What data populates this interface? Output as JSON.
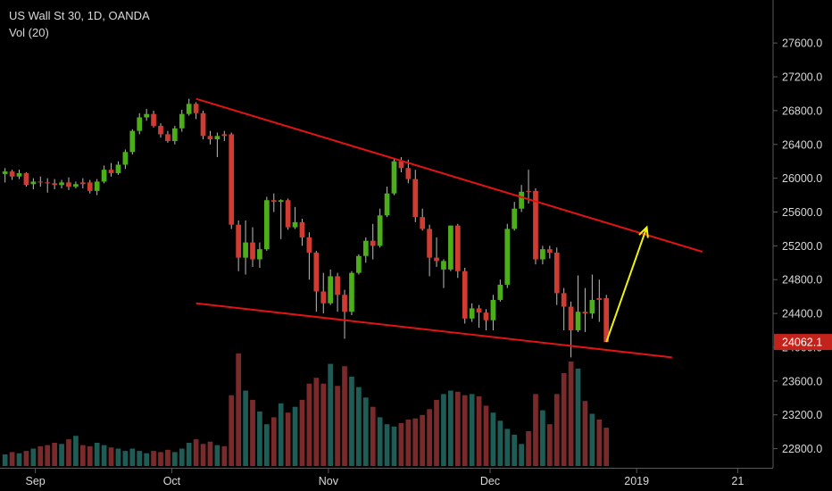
{
  "legend": {
    "symbol_line": "US Wall St 30, 1D, OANDA",
    "volume_line": "Vol (20)"
  },
  "colors": {
    "background": "#000000",
    "up_candle": "#4caf1a",
    "down_candle": "#d13c32",
    "wick": "#bdbdbd",
    "up_volume": "#1e5c55",
    "down_volume": "#7a2a2a",
    "trend_lines": "#e01414",
    "arrow": "#f2f20a",
    "axis_text": "#d8d8d8",
    "price_label_bg": "#c4231c"
  },
  "chart_data": {
    "type": "candlestick",
    "title": "US Wall St 30, 1D, OANDA",
    "indicator": "Vol (20)",
    "y_axis": {
      "ticks": [
        "22800.0",
        "23200.0",
        "23600.0",
        "24000.0",
        "24400.0",
        "24800.0",
        "25200.0",
        "25600.0",
        "26000.0",
        "26400.0",
        "26800.0",
        "27200.0",
        "27600.0"
      ],
      "range": [
        22600,
        27850
      ],
      "current_price_label": "24062.1",
      "current_price": 24062.1
    },
    "x_axis": {
      "ticks": [
        {
          "label": "Sep",
          "date": "2018-09-04"
        },
        {
          "label": "Oct",
          "date": "2018-10-01"
        },
        {
          "label": "Nov",
          "date": "2018-11-01"
        },
        {
          "label": "Dec",
          "date": "2018-12-03"
        },
        {
          "label": "2019",
          "date": "2019-01-01"
        },
        {
          "label": "21",
          "date": "2019-01-21"
        }
      ],
      "range": [
        "2018-08-28",
        "2019-01-28"
      ]
    },
    "candles": [
      {
        "date": "2018-08-29",
        "open": 26050,
        "high": 26120,
        "low": 25950,
        "close": 26080,
        "up": true,
        "volume": 0.1
      },
      {
        "date": "2018-08-30",
        "open": 26080,
        "high": 26100,
        "low": 25980,
        "close": 26020,
        "up": false,
        "volume": 0.12
      },
      {
        "date": "2018-08-31",
        "open": 26020,
        "high": 26100,
        "low": 25990,
        "close": 26060,
        "up": true,
        "volume": 0.11
      },
      {
        "date": "2018-09-03",
        "open": 26060,
        "high": 26070,
        "low": 25900,
        "close": 25920,
        "up": false,
        "volume": 0.13
      },
      {
        "date": "2018-09-04",
        "open": 25930,
        "high": 26000,
        "low": 25870,
        "close": 25960,
        "up": true,
        "volume": 0.15
      },
      {
        "date": "2018-09-05",
        "open": 25960,
        "high": 26020,
        "low": 25900,
        "close": 25950,
        "up": false,
        "volume": 0.17
      },
      {
        "date": "2018-09-06",
        "open": 25950,
        "high": 26000,
        "low": 25830,
        "close": 25940,
        "up": false,
        "volume": 0.18
      },
      {
        "date": "2018-09-07",
        "open": 25940,
        "high": 25990,
        "low": 25870,
        "close": 25920,
        "up": false,
        "volume": 0.2
      },
      {
        "date": "2018-09-10",
        "open": 25920,
        "high": 25980,
        "low": 25880,
        "close": 25950,
        "up": true,
        "volume": 0.19
      },
      {
        "date": "2018-09-11",
        "open": 25950,
        "high": 26010,
        "low": 25860,
        "close": 25900,
        "up": false,
        "volume": 0.23
      },
      {
        "date": "2018-09-12",
        "open": 25900,
        "high": 25960,
        "low": 25880,
        "close": 25930,
        "up": true,
        "volume": 0.26
      },
      {
        "date": "2018-09-13",
        "open": 25930,
        "high": 26000,
        "low": 25880,
        "close": 25950,
        "up": false,
        "volume": 0.18
      },
      {
        "date": "2018-09-14",
        "open": 25950,
        "high": 25980,
        "low": 25820,
        "close": 25850,
        "up": false,
        "volume": 0.17
      },
      {
        "date": "2018-09-17",
        "open": 25850,
        "high": 25990,
        "low": 25800,
        "close": 25960,
        "up": true,
        "volume": 0.2
      },
      {
        "date": "2018-09-18",
        "open": 25960,
        "high": 26150,
        "low": 25940,
        "close": 26100,
        "up": true,
        "volume": 0.18
      },
      {
        "date": "2018-09-19",
        "open": 26100,
        "high": 26180,
        "low": 26020,
        "close": 26060,
        "up": false,
        "volume": 0.16
      },
      {
        "date": "2018-09-20",
        "open": 26060,
        "high": 26200,
        "low": 26040,
        "close": 26160,
        "up": true,
        "volume": 0.15
      },
      {
        "date": "2018-09-21",
        "open": 26160,
        "high": 26340,
        "low": 26110,
        "close": 26310,
        "up": true,
        "volume": 0.13
      },
      {
        "date": "2018-09-24",
        "open": 26310,
        "high": 26580,
        "low": 26280,
        "close": 26560,
        "up": true,
        "volume": 0.15
      },
      {
        "date": "2018-09-25",
        "open": 26560,
        "high": 26770,
        "low": 26520,
        "close": 26720,
        "up": true,
        "volume": 0.13
      },
      {
        "date": "2018-09-26",
        "open": 26720,
        "high": 26820,
        "low": 26680,
        "close": 26760,
        "up": true,
        "volume": 0.11
      },
      {
        "date": "2018-09-27",
        "open": 26760,
        "high": 26800,
        "low": 26600,
        "close": 26620,
        "up": false,
        "volume": 0.13
      },
      {
        "date": "2018-09-28",
        "open": 26620,
        "high": 26650,
        "low": 26480,
        "close": 26520,
        "up": false,
        "volume": 0.12
      },
      {
        "date": "2018-10-01",
        "open": 26520,
        "high": 26560,
        "low": 26420,
        "close": 26440,
        "up": false,
        "volume": 0.14
      },
      {
        "date": "2018-10-02",
        "open": 26440,
        "high": 26620,
        "low": 26400,
        "close": 26590,
        "up": true,
        "volume": 0.12
      },
      {
        "date": "2018-10-03",
        "open": 26590,
        "high": 26810,
        "low": 26550,
        "close": 26760,
        "up": true,
        "volume": 0.15
      },
      {
        "date": "2018-10-04",
        "open": 26760,
        "high": 26940,
        "low": 26740,
        "close": 26880,
        "up": true,
        "volume": 0.2
      },
      {
        "date": "2018-10-05",
        "open": 26880,
        "high": 26900,
        "low": 26700,
        "close": 26770,
        "up": false,
        "volume": 0.23
      },
      {
        "date": "2018-10-08",
        "open": 26770,
        "high": 26800,
        "low": 26460,
        "close": 26500,
        "up": false,
        "volume": 0.19
      },
      {
        "date": "2018-10-09",
        "open": 26500,
        "high": 26560,
        "low": 26400,
        "close": 26460,
        "up": false,
        "volume": 0.21
      },
      {
        "date": "2018-10-10",
        "open": 26460,
        "high": 26540,
        "low": 26250,
        "close": 26500,
        "up": true,
        "volume": 0.18
      },
      {
        "date": "2018-10-11",
        "open": 26500,
        "high": 26560,
        "low": 26440,
        "close": 26520,
        "up": false,
        "volume": 0.17
      },
      {
        "date": "2018-10-12",
        "open": 26520,
        "high": 26540,
        "low": 25400,
        "close": 25450,
        "up": false,
        "volume": 0.61
      },
      {
        "date": "2018-10-15",
        "open": 25450,
        "high": 25500,
        "low": 24900,
        "close": 25060,
        "up": false,
        "volume": 0.97
      },
      {
        "date": "2018-10-16",
        "open": 25060,
        "high": 25500,
        "low": 24860,
        "close": 25240,
        "up": true,
        "volume": 0.65
      },
      {
        "date": "2018-10-17",
        "open": 25240,
        "high": 25420,
        "low": 24950,
        "close": 25040,
        "up": false,
        "volume": 0.57
      },
      {
        "date": "2018-10-18",
        "open": 25040,
        "high": 25240,
        "low": 24940,
        "close": 25160,
        "up": true,
        "volume": 0.47
      },
      {
        "date": "2018-10-19",
        "open": 25160,
        "high": 25780,
        "low": 25140,
        "close": 25740,
        "up": true,
        "volume": 0.36
      },
      {
        "date": "2018-10-22",
        "open": 25740,
        "high": 25820,
        "low": 25600,
        "close": 25720,
        "up": false,
        "volume": 0.42
      },
      {
        "date": "2018-10-23",
        "open": 25720,
        "high": 25750,
        "low": 25280,
        "close": 25740,
        "up": true,
        "volume": 0.54
      },
      {
        "date": "2018-10-24",
        "open": 25740,
        "high": 25760,
        "low": 25390,
        "close": 25420,
        "up": false,
        "volume": 0.46
      },
      {
        "date": "2018-10-25",
        "open": 25420,
        "high": 25660,
        "low": 25400,
        "close": 25480,
        "up": true,
        "volume": 0.51
      },
      {
        "date": "2018-10-26",
        "open": 25480,
        "high": 25520,
        "low": 25200,
        "close": 25300,
        "up": false,
        "volume": 0.57
      },
      {
        "date": "2018-10-29",
        "open": 25300,
        "high": 25360,
        "low": 24800,
        "close": 25120,
        "up": false,
        "volume": 0.71
      },
      {
        "date": "2018-10-30",
        "open": 25120,
        "high": 25140,
        "low": 24420,
        "close": 24660,
        "up": false,
        "volume": 0.76
      },
      {
        "date": "2018-10-31",
        "open": 24660,
        "high": 24880,
        "low": 24400,
        "close": 24520,
        "up": false,
        "volume": 0.71
      },
      {
        "date": "2018-11-01",
        "open": 24520,
        "high": 24920,
        "low": 24500,
        "close": 24840,
        "up": true,
        "volume": 0.88
      },
      {
        "date": "2018-11-02",
        "open": 24840,
        "high": 24880,
        "low": 24420,
        "close": 24620,
        "up": false,
        "volume": 0.69
      },
      {
        "date": "2018-11-05",
        "open": 24620,
        "high": 24680,
        "low": 24100,
        "close": 24420,
        "up": false,
        "volume": 0.86
      },
      {
        "date": "2018-11-06",
        "open": 24420,
        "high": 24900,
        "low": 24380,
        "close": 24880,
        "up": true,
        "volume": 0.77
      },
      {
        "date": "2018-11-07",
        "open": 24880,
        "high": 25100,
        "low": 24860,
        "close": 25080,
        "up": true,
        "volume": 0.68
      },
      {
        "date": "2018-11-08",
        "open": 25080,
        "high": 25300,
        "low": 25000,
        "close": 25260,
        "up": true,
        "volume": 0.59
      },
      {
        "date": "2018-11-09",
        "open": 25260,
        "high": 25460,
        "low": 25040,
        "close": 25200,
        "up": false,
        "volume": 0.51
      },
      {
        "date": "2018-11-12",
        "open": 25200,
        "high": 25640,
        "low": 25180,
        "close": 25560,
        "up": true,
        "volume": 0.42
      },
      {
        "date": "2018-11-13",
        "open": 25560,
        "high": 25900,
        "low": 25540,
        "close": 25820,
        "up": true,
        "volume": 0.36
      },
      {
        "date": "2018-11-14",
        "open": 25820,
        "high": 26240,
        "low": 25800,
        "close": 26200,
        "up": true,
        "volume": 0.34
      },
      {
        "date": "2018-11-15",
        "open": 26200,
        "high": 26250,
        "low": 26070,
        "close": 26120,
        "up": false,
        "volume": 0.37
      },
      {
        "date": "2018-11-16",
        "open": 26120,
        "high": 26220,
        "low": 25940,
        "close": 25990,
        "up": false,
        "volume": 0.4
      },
      {
        "date": "2018-11-19",
        "open": 25990,
        "high": 26100,
        "low": 25480,
        "close": 25540,
        "up": false,
        "volume": 0.41
      },
      {
        "date": "2018-11-20",
        "open": 25540,
        "high": 25640,
        "low": 25380,
        "close": 25400,
        "up": false,
        "volume": 0.44
      },
      {
        "date": "2018-11-21",
        "open": 25400,
        "high": 25450,
        "low": 24840,
        "close": 25060,
        "up": false,
        "volume": 0.49
      },
      {
        "date": "2018-11-22",
        "open": 25060,
        "high": 25300,
        "low": 24950,
        "close": 25020,
        "up": false,
        "volume": 0.57
      },
      {
        "date": "2018-11-23",
        "open": 25020,
        "high": 25040,
        "low": 24700,
        "close": 24920,
        "up": true,
        "volume": 0.62
      },
      {
        "date": "2018-11-26",
        "open": 24920,
        "high": 25440,
        "low": 24900,
        "close": 25440,
        "up": true,
        "volume": 0.65
      },
      {
        "date": "2018-11-27",
        "open": 25440,
        "high": 25460,
        "low": 24820,
        "close": 24900,
        "up": false,
        "volume": 0.64
      },
      {
        "date": "2018-11-28",
        "open": 24900,
        "high": 24940,
        "low": 24280,
        "close": 24340,
        "up": false,
        "volume": 0.61
      },
      {
        "date": "2018-11-29",
        "open": 24340,
        "high": 24520,
        "low": 24300,
        "close": 24460,
        "up": true,
        "volume": 0.62
      },
      {
        "date": "2018-11-30",
        "open": 24460,
        "high": 24500,
        "low": 24230,
        "close": 24410,
        "up": false,
        "volume": 0.6
      },
      {
        "date": "2018-12-03",
        "open": 24410,
        "high": 24450,
        "low": 24200,
        "close": 24320,
        "up": false,
        "volume": 0.52
      },
      {
        "date": "2018-12-04",
        "open": 24320,
        "high": 24620,
        "low": 24200,
        "close": 24560,
        "up": true,
        "volume": 0.46
      },
      {
        "date": "2018-12-05",
        "open": 24560,
        "high": 24800,
        "low": 24540,
        "close": 24740,
        "up": true,
        "volume": 0.39
      },
      {
        "date": "2018-12-06",
        "open": 24740,
        "high": 25460,
        "low": 24700,
        "close": 25400,
        "up": true,
        "volume": 0.32
      },
      {
        "date": "2018-12-07",
        "open": 25400,
        "high": 25720,
        "low": 25380,
        "close": 25640,
        "up": true,
        "volume": 0.27
      },
      {
        "date": "2018-12-10",
        "open": 25640,
        "high": 25920,
        "low": 25600,
        "close": 25840,
        "up": true,
        "volume": 0.19
      },
      {
        "date": "2018-12-11",
        "open": 25840,
        "high": 26100,
        "low": 25700,
        "close": 25850,
        "up": false,
        "volume": 0.3
      },
      {
        "date": "2018-12-12",
        "open": 25850,
        "high": 25880,
        "low": 24980,
        "close": 25040,
        "up": false,
        "volume": 0.62
      },
      {
        "date": "2018-12-13",
        "open": 25040,
        "high": 25200,
        "low": 24980,
        "close": 25160,
        "up": true,
        "volume": 0.48
      },
      {
        "date": "2018-12-14",
        "open": 25160,
        "high": 25200,
        "low": 25050,
        "close": 25120,
        "up": false,
        "volume": 0.36
      },
      {
        "date": "2018-12-17",
        "open": 25120,
        "high": 25180,
        "low": 24500,
        "close": 24640,
        "up": false,
        "volume": 0.62
      },
      {
        "date": "2018-12-18",
        "open": 24640,
        "high": 24700,
        "low": 24200,
        "close": 24480,
        "up": false,
        "volume": 0.8
      },
      {
        "date": "2018-12-19",
        "open": 24480,
        "high": 24540,
        "low": 23880,
        "close": 24200,
        "up": false,
        "volume": 0.9
      },
      {
        "date": "2018-12-20",
        "open": 24200,
        "high": 24850,
        "low": 24180,
        "close": 24420,
        "up": true,
        "volume": 0.84
      },
      {
        "date": "2018-12-21",
        "open": 24420,
        "high": 24700,
        "low": 24180,
        "close": 24400,
        "up": false,
        "volume": 0.56
      },
      {
        "date": "2018-12-24",
        "open": 24400,
        "high": 24860,
        "low": 24340,
        "close": 24560,
        "up": true,
        "volume": 0.45
      },
      {
        "date": "2018-12-25",
        "open": 24560,
        "high": 24800,
        "low": 24300,
        "close": 24580,
        "up": false,
        "volume": 0.4
      },
      {
        "date": "2018-12-26",
        "open": 24580,
        "high": 24620,
        "low": 24062.1,
        "close": 24062.1,
        "up": false,
        "volume": 0.33
      }
    ],
    "trend_lines": [
      {
        "name": "upper",
        "from": {
          "date": "2018-10-05",
          "price": 26940
        },
        "to": {
          "date": "2019-01-14",
          "price": 25130
        }
      },
      {
        "name": "lower",
        "from": {
          "date": "2018-10-05",
          "price": 24520
        },
        "to": {
          "date": "2019-01-08",
          "price": 23880
        }
      }
    ],
    "arrow": {
      "from": {
        "date": "2018-12-26",
        "price": 24062.1
      },
      "to": {
        "date": "2019-01-03",
        "price": 25420
      }
    },
    "grid": false
  }
}
